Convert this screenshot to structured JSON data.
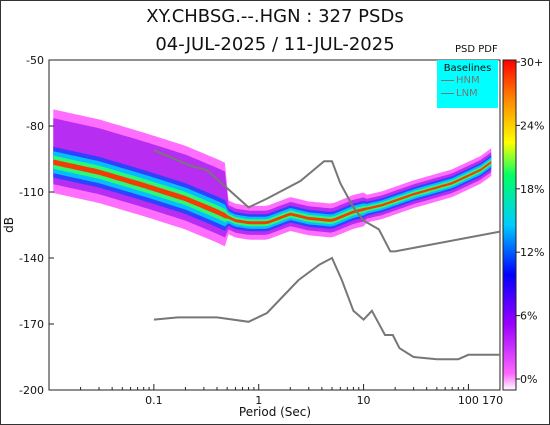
{
  "title_line1": "XY.CHBSG.--.HGN : 327 PSDs",
  "title_line2": "04-JUL-2025 / 11-JUL-2025",
  "colorbar": {
    "title": "PSD PDF",
    "ticks": [
      "30+",
      "24%",
      "18%",
      "12%",
      "6%",
      "0%"
    ]
  },
  "legend": {
    "title": "Baselines",
    "items": [
      "HNM",
      "LNM"
    ]
  },
  "chart_data": {
    "type": "heatmap",
    "xlabel": "Period (Sec)",
    "ylabel": "dB",
    "xscale": "log",
    "xlim": [
      0.01,
      200
    ],
    "ylim": [
      -200,
      -50
    ],
    "x_ticks": [
      "0.1",
      "1",
      "10",
      "100",
      "170"
    ],
    "y_ticks": [
      "-50",
      "-80",
      "-110",
      "-140",
      "-170",
      "-200"
    ],
    "legend_position": "top-right",
    "series": [
      {
        "name": "HNM",
        "color": "#777777",
        "points": [
          [
            0.1,
            -91
          ],
          [
            0.22,
            -98
          ],
          [
            0.32,
            -100
          ],
          [
            0.8,
            -117
          ],
          [
            1.2,
            -113
          ],
          [
            2.5,
            -105
          ],
          [
            4.2,
            -96
          ],
          [
            5,
            -96
          ],
          [
            6,
            -106
          ],
          [
            8,
            -117
          ],
          [
            10,
            -123
          ],
          [
            14,
            -127
          ],
          [
            18,
            -137
          ],
          [
            20,
            -137
          ],
          [
            200,
            -128
          ]
        ]
      },
      {
        "name": "LNM",
        "color": "#777777",
        "points": [
          [
            0.1,
            -168
          ],
          [
            0.17,
            -167
          ],
          [
            0.4,
            -167
          ],
          [
            0.8,
            -169
          ],
          [
            1.2,
            -165
          ],
          [
            2.4,
            -150
          ],
          [
            3.8,
            -143
          ],
          [
            5,
            -140
          ],
          [
            6.2,
            -150
          ],
          [
            8,
            -164
          ],
          [
            10,
            -168
          ],
          [
            12,
            -164
          ],
          [
            16,
            -175
          ],
          [
            19,
            -175
          ],
          [
            22,
            -181
          ],
          [
            30,
            -185
          ],
          [
            50,
            -186
          ],
          [
            80,
            -186
          ],
          [
            100,
            -184
          ],
          [
            200,
            -184
          ]
        ]
      }
    ],
    "density_ridge": {
      "points": [
        [
          0.01,
          -96
        ],
        [
          0.03,
          -101
        ],
        [
          0.08,
          -107
        ],
        [
          0.2,
          -113
        ],
        [
          0.4,
          -119
        ],
        [
          0.6,
          -123
        ],
        [
          0.8,
          -124
        ],
        [
          1.2,
          -124
        ],
        [
          2,
          -120
        ],
        [
          3,
          -122
        ],
        [
          5,
          -123
        ],
        [
          8,
          -119
        ],
        [
          15,
          -116
        ],
        [
          30,
          -111
        ],
        [
          70,
          -106
        ],
        [
          130,
          -100
        ],
        [
          170,
          -96
        ]
      ],
      "peak_level": "30+"
    }
  }
}
